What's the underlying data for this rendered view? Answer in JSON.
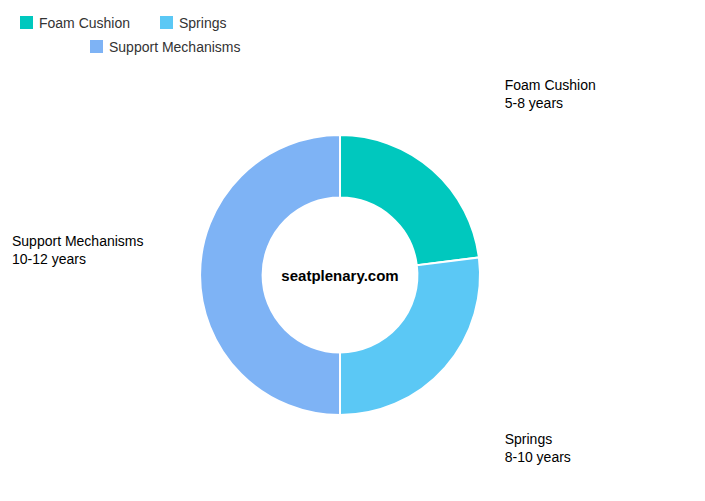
{
  "chart_data": {
    "type": "pie",
    "categories": [
      "Foam Cushion",
      "Springs",
      "Support Mechanisms"
    ],
    "sublabels": [
      "5-8 years",
      "8-10 years",
      "10-12 years"
    ],
    "values": [
      23,
      27,
      50
    ],
    "colors": [
      "#00C8BE",
      "#5BC8F5",
      "#7EB3F5"
    ],
    "annotations": [
      "seatplenary.com"
    ],
    "legend": "top-left"
  }
}
